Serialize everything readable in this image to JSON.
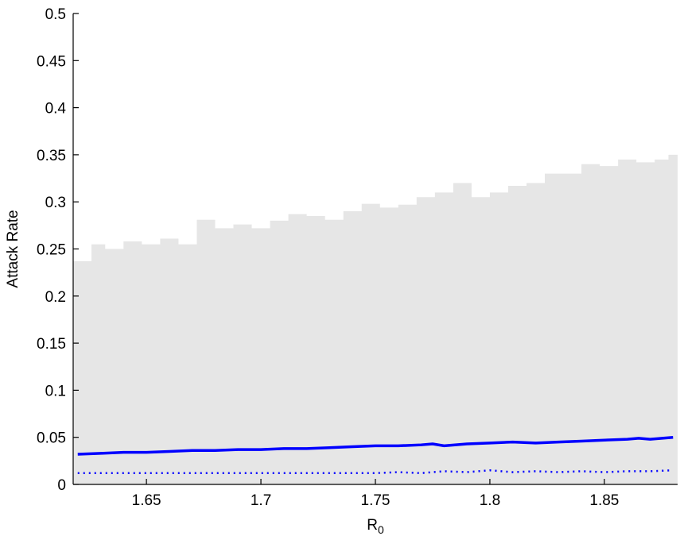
{
  "chart_data": {
    "type": "area",
    "xlabel": "R",
    "xlabel_subscript": "0",
    "ylabel": "Attack Rate",
    "xlim": [
      1.618,
      1.882
    ],
    "ylim": [
      0,
      0.5
    ],
    "xticks": [
      1.65,
      1.7,
      1.75,
      1.8,
      1.85
    ],
    "xtick_labels": [
      "1.65",
      "1.7",
      "1.75",
      "1.8",
      "1.85"
    ],
    "yticks": [
      0,
      0.05,
      0.1,
      0.15,
      0.2,
      0.25,
      0.3,
      0.35,
      0.4,
      0.45,
      0.5
    ],
    "ytick_labels": [
      "0",
      "0.05",
      "0.1",
      "0.15",
      "0.2",
      "0.25",
      "0.3",
      "0.35",
      "0.4",
      "0.45",
      "0.5"
    ],
    "grid": false,
    "legend": "none",
    "series": [
      {
        "kind": "shaded-band",
        "color": "#e6e6e6",
        "x": [
          1.618,
          1.626,
          1.632,
          1.64,
          1.648,
          1.656,
          1.664,
          1.672,
          1.68,
          1.688,
          1.696,
          1.704,
          1.712,
          1.72,
          1.728,
          1.736,
          1.744,
          1.752,
          1.76,
          1.768,
          1.776,
          1.784,
          1.792,
          1.8,
          1.808,
          1.816,
          1.824,
          1.832,
          1.84,
          1.848,
          1.856,
          1.864,
          1.872,
          1.878,
          1.882
        ],
        "lower": [
          0,
          0,
          0,
          0,
          0,
          0,
          0,
          0,
          0,
          0,
          0,
          0,
          0,
          0,
          0,
          0,
          0,
          0,
          0,
          0,
          0,
          0,
          0,
          0,
          0,
          0,
          0,
          0,
          0,
          0,
          0,
          0,
          0,
          0,
          0
        ],
        "upper": [
          0.237,
          0.255,
          0.25,
          0.258,
          0.255,
          0.261,
          0.255,
          0.281,
          0.272,
          0.276,
          0.272,
          0.28,
          0.287,
          0.285,
          0.281,
          0.29,
          0.298,
          0.294,
          0.297,
          0.305,
          0.31,
          0.32,
          0.305,
          0.31,
          0.317,
          0.32,
          0.33,
          0.33,
          0.34,
          0.338,
          0.345,
          0.342,
          0.345,
          0.35,
          0.358
        ]
      },
      {
        "kind": "solid-line",
        "color": "#0000ff",
        "x": [
          1.62,
          1.63,
          1.64,
          1.65,
          1.66,
          1.67,
          1.68,
          1.69,
          1.7,
          1.71,
          1.72,
          1.73,
          1.74,
          1.75,
          1.76,
          1.77,
          1.775,
          1.78,
          1.79,
          1.8,
          1.81,
          1.82,
          1.83,
          1.84,
          1.85,
          1.86,
          1.865,
          1.87,
          1.88
        ],
        "y": [
          0.032,
          0.033,
          0.034,
          0.034,
          0.035,
          0.036,
          0.036,
          0.037,
          0.037,
          0.038,
          0.038,
          0.039,
          0.04,
          0.041,
          0.041,
          0.042,
          0.043,
          0.041,
          0.043,
          0.044,
          0.045,
          0.044,
          0.045,
          0.046,
          0.047,
          0.048,
          0.049,
          0.048,
          0.05
        ]
      },
      {
        "kind": "dotted-line",
        "color": "#0000ff",
        "x": [
          1.62,
          1.65,
          1.7,
          1.75,
          1.76,
          1.77,
          1.78,
          1.79,
          1.8,
          1.81,
          1.82,
          1.83,
          1.84,
          1.85,
          1.86,
          1.87,
          1.88
        ],
        "y": [
          0.012,
          0.012,
          0.012,
          0.012,
          0.013,
          0.012,
          0.014,
          0.013,
          0.015,
          0.013,
          0.014,
          0.013,
          0.014,
          0.013,
          0.014,
          0.014,
          0.015
        ]
      }
    ]
  }
}
